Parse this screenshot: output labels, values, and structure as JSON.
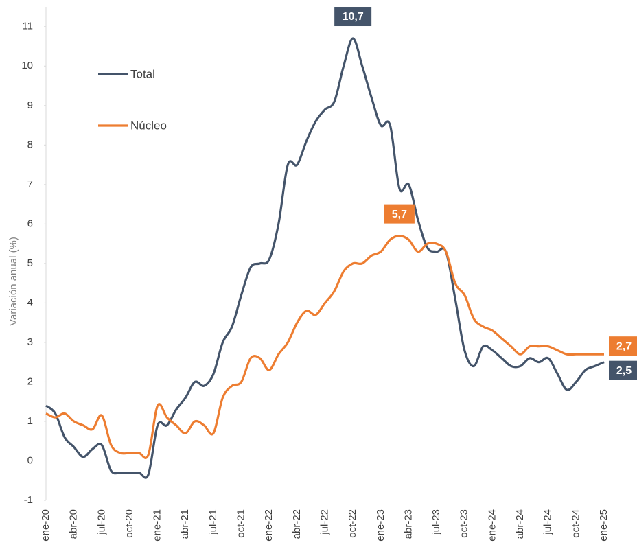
{
  "chart_data": {
    "type": "line",
    "y_label": "Variación anual (%)",
    "categories": [
      "ene-20",
      null,
      null,
      "abr-20",
      null,
      null,
      "jul-20",
      null,
      null,
      "oct-20",
      null,
      null,
      "ene-21",
      null,
      null,
      "abr-21",
      null,
      null,
      "jul-21",
      null,
      null,
      "oct-21",
      null,
      null,
      "ene-22",
      null,
      null,
      "abr-22",
      null,
      null,
      "jul-22",
      null,
      null,
      "oct-22",
      null,
      null,
      "ene-23",
      null,
      null,
      "abr-23",
      null,
      null,
      "jul-23",
      null,
      null,
      "oct-23",
      null,
      null,
      "ene-24",
      null,
      null,
      "abr-24",
      null,
      null,
      "jul-24",
      null,
      null,
      "oct-24",
      null,
      null,
      "ene-25"
    ],
    "series": [
      {
        "name": "Total",
        "color": "#44546a",
        "values": [
          1.4,
          1.2,
          0.6,
          0.35,
          0.1,
          0.3,
          0.4,
          -0.25,
          -0.3,
          -0.3,
          -0.3,
          -0.35,
          0.9,
          0.9,
          1.3,
          1.6,
          2.0,
          1.9,
          2.2,
          3.0,
          3.4,
          4.2,
          4.9,
          5.0,
          5.1,
          6.0,
          7.5,
          7.5,
          8.1,
          8.6,
          8.9,
          9.1,
          10.0,
          10.7,
          10.0,
          9.2,
          8.5,
          8.5,
          6.9,
          7.0,
          6.1,
          5.4,
          5.3,
          5.3,
          4.1,
          2.8,
          2.4,
          2.9,
          2.8,
          2.6,
          2.4,
          2.4,
          2.6,
          2.5,
          2.6,
          2.2,
          1.8,
          2.0,
          2.3,
          2.4,
          2.5
        ],
        "value_labels": [
          null,
          null,
          null,
          null,
          null,
          null,
          null,
          null,
          null,
          null,
          null,
          null,
          null,
          null,
          null,
          null,
          null,
          null,
          null,
          null,
          null,
          null,
          null,
          null,
          null,
          null,
          null,
          null,
          null,
          null,
          null,
          null,
          null,
          "10,7",
          null,
          null,
          null,
          null,
          null,
          null,
          null,
          null,
          null,
          null,
          null,
          null,
          null,
          null,
          null,
          null,
          null,
          null,
          null,
          null,
          null,
          null,
          null,
          null,
          null,
          null,
          "2,5"
        ]
      },
      {
        "name": "Núcleo",
        "color": "#ed7d31",
        "values": [
          1.2,
          1.1,
          1.2,
          1.0,
          0.9,
          0.8,
          1.15,
          0.4,
          0.2,
          0.2,
          0.2,
          0.15,
          1.4,
          1.1,
          0.9,
          0.7,
          1.0,
          0.9,
          0.7,
          1.6,
          1.9,
          2.0,
          2.6,
          2.6,
          2.3,
          2.7,
          3.0,
          3.5,
          3.8,
          3.7,
          4.0,
          4.3,
          4.8,
          5.0,
          5.0,
          5.2,
          5.3,
          5.6,
          5.7,
          5.6,
          5.3,
          5.5,
          5.5,
          5.3,
          4.5,
          4.2,
          3.6,
          3.4,
          3.3,
          3.1,
          2.9,
          2.7,
          2.9,
          2.9,
          2.9,
          2.8,
          2.7,
          2.7,
          2.7,
          2.7,
          2.7
        ],
        "value_labels": [
          null,
          null,
          null,
          null,
          null,
          null,
          null,
          null,
          null,
          null,
          null,
          null,
          null,
          null,
          null,
          null,
          null,
          null,
          null,
          null,
          null,
          null,
          null,
          null,
          null,
          null,
          null,
          null,
          null,
          null,
          null,
          null,
          null,
          null,
          null,
          null,
          null,
          null,
          "5,7",
          null,
          null,
          null,
          null,
          null,
          null,
          null,
          null,
          null,
          null,
          null,
          null,
          null,
          null,
          null,
          null,
          null,
          null,
          null,
          null,
          null,
          "2,7"
        ]
      }
    ],
    "ylim": [
      -1,
      11.5
    ],
    "yticks": [
      -1,
      0,
      1,
      2,
      3,
      4,
      5,
      6,
      7,
      8,
      9,
      10,
      11
    ],
    "grid": false,
    "legend": "upper left"
  }
}
